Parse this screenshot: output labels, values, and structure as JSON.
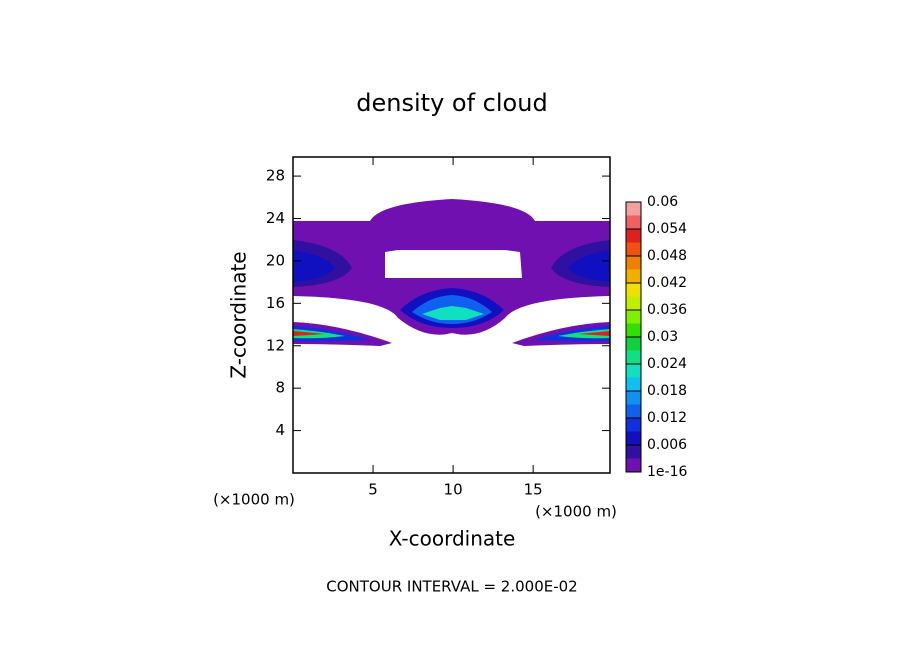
{
  "chart_data": {
    "type": "contour",
    "title": "density of cloud",
    "xlabel": "X-coordinate",
    "ylabel": "Z-coordinate",
    "xunit": "(×1000 m)",
    "yunit": "(×1000 m)",
    "footer": "CONTOUR INTERVAL = 2.000E-02",
    "xlim": [
      0,
      19.8
    ],
    "xticks": [
      5,
      10,
      15
    ],
    "ylim": [
      0,
      29.8
    ],
    "yticks": [
      4,
      8,
      12,
      16,
      20,
      24,
      28
    ],
    "colorbar": {
      "ticks": [
        0.06,
        0.054,
        0.048,
        0.042,
        0.036,
        0.03,
        0.024,
        0.018,
        0.012,
        0.006,
        {
          "value": 0,
          "label": "1e-16"
        }
      ],
      "colors": [
        "#f4a0a0",
        "#f06060",
        "#e02020",
        "#f05010",
        "#f08000",
        "#f0b000",
        "#f0e000",
        "#c0f000",
        "#80f000",
        "#30e000",
        "#10d040",
        "#10e080",
        "#10e0c0",
        "#10c0f0",
        "#1090f0",
        "#1060f0",
        "#1030e0",
        "#1010c0",
        "#3010a0",
        "#7010b0"
      ]
    }
  }
}
